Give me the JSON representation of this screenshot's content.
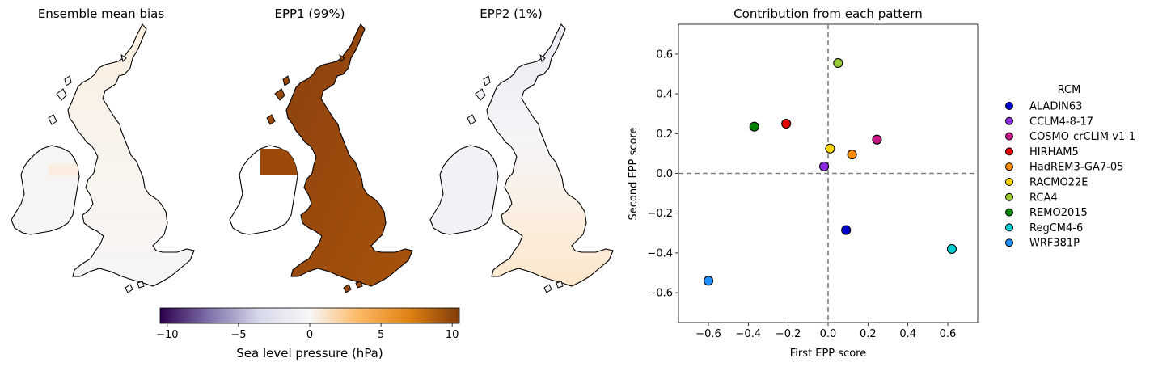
{
  "maps": {
    "titles": [
      "Ensemble mean bias",
      "EPP1 (99%)",
      "EPP2 (1%)"
    ]
  },
  "colorbar": {
    "label": "Sea level pressure (hPa)",
    "ticks": [
      -10,
      -5,
      0,
      5,
      10
    ],
    "tick_labels": [
      "−10",
      "−5",
      "0",
      "5",
      "10"
    ],
    "range": [
      -10.5,
      10.5
    ],
    "colors": [
      "#2d004b",
      "#8073ac",
      "#d8daeb",
      "#f7f7f7",
      "#fdb863",
      "#e08214",
      "#7f3b08"
    ]
  },
  "chart_data": {
    "type": "scatter",
    "title": "Contribution from each pattern",
    "xlabel": "First EPP score",
    "ylabel": "Second EPP score",
    "xlim": [
      -0.75,
      0.75
    ],
    "ylim": [
      -0.75,
      0.75
    ],
    "xticks": [
      -0.6,
      -0.4,
      -0.2,
      0.0,
      0.2,
      0.4,
      0.6
    ],
    "yticks": [
      -0.6,
      -0.4,
      -0.2,
      0.0,
      0.2,
      0.4,
      0.6
    ],
    "xtick_labels": [
      "−0.6",
      "−0.4",
      "−0.2",
      "0.0",
      "0.2",
      "0.4",
      "0.6"
    ],
    "ytick_labels": [
      "−0.6",
      "−0.4",
      "−0.2",
      "0.0",
      "0.2",
      "0.4",
      "0.6"
    ],
    "reference_lines": {
      "x": 0.0,
      "y": 0.0,
      "style": "dashed",
      "color": "#808080"
    },
    "legend": {
      "title": "RCM",
      "position": "right"
    },
    "series": [
      {
        "name": "ALADIN63",
        "color": "#0000cd",
        "x": 0.09,
        "y": -0.285
      },
      {
        "name": "CCLM4-8-17",
        "color": "#8a2be2",
        "x": -0.02,
        "y": 0.035
      },
      {
        "name": "COSMO-crCLIM-v1-1",
        "color": "#c71585",
        "x": 0.245,
        "y": 0.17
      },
      {
        "name": "HIRHAM5",
        "color": "#e00000",
        "x": -0.21,
        "y": 0.25
      },
      {
        "name": "HadREM3-GA7-05",
        "color": "#ff8c00",
        "x": 0.12,
        "y": 0.095
      },
      {
        "name": "RACMO22E",
        "color": "#ffd700",
        "x": 0.01,
        "y": 0.125
      },
      {
        "name": "RCA4",
        "color": "#9acd32",
        "x": 0.05,
        "y": 0.555
      },
      {
        "name": "REMO2015",
        "color": "#008000",
        "x": -0.37,
        "y": 0.235
      },
      {
        "name": "RegCM4-6",
        "color": "#00ced1",
        "x": 0.62,
        "y": -0.38
      },
      {
        "name": "WRF381P",
        "color": "#1e90ff",
        "x": -0.6,
        "y": -0.54
      }
    ]
  }
}
